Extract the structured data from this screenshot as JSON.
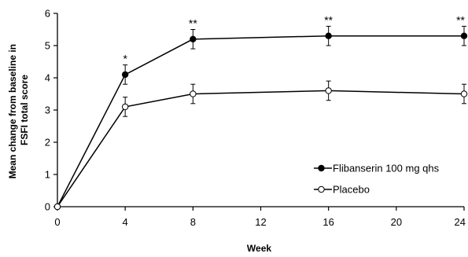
{
  "chart_data": {
    "type": "line",
    "title": "",
    "xlabel": "Week",
    "ylabel": [
      "Mean change from baseline in",
      "FSFI total score"
    ],
    "xlim": [
      0,
      24
    ],
    "ylim": [
      0,
      6
    ],
    "x_ticks": [
      0,
      4,
      8,
      12,
      16,
      20,
      24
    ],
    "x_tick_labels": [
      "0",
      "4",
      "8",
      "12",
      "16",
      "20",
      "24"
    ],
    "y_ticks": [
      0,
      1,
      2,
      3,
      4,
      5,
      6
    ],
    "y_tick_labels": [
      "0",
      "1",
      "2",
      "3",
      "4",
      "5",
      "6"
    ],
    "grid": false,
    "legend_position": "bottom-right",
    "x": [
      0,
      4,
      8,
      16,
      24
    ],
    "series": [
      {
        "name": "Flibanserin 100 mg qhs",
        "marker": "filled-circle",
        "color": "#000000",
        "values": [
          0,
          4.1,
          5.2,
          5.3,
          5.3
        ],
        "errors": [
          0,
          0.3,
          0.3,
          0.3,
          0.3
        ]
      },
      {
        "name": "Placebo",
        "marker": "open-circle",
        "color": "#000000",
        "values": [
          0,
          3.1,
          3.5,
          3.6,
          3.5
        ],
        "errors": [
          0,
          0.3,
          0.3,
          0.3,
          0.3
        ]
      }
    ],
    "annotations": [
      {
        "x": 4,
        "y": 4.4,
        "text": "*"
      },
      {
        "x": 8,
        "y": 5.5,
        "text": "**"
      },
      {
        "x": 16,
        "y": 5.6,
        "text": "**"
      },
      {
        "x": 24,
        "y": 5.6,
        "text": "**"
      }
    ]
  }
}
